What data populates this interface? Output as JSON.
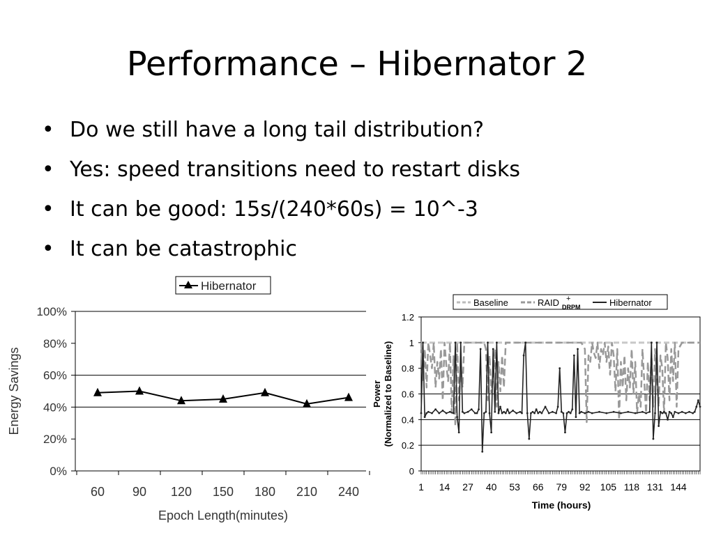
{
  "slide": {
    "title": "Performance – Hibernator 2",
    "bullet_glyph": "•",
    "bullets": [
      "Do we still have a long tail distribution?",
      "Yes: speed transitions need to restart disks",
      "It can be good: 15s/(240*60s) = 10^-3",
      "It can be catastrophic"
    ]
  },
  "chart_data": [
    {
      "type": "line",
      "title": "",
      "xlabel": "Epoch Length(minutes)",
      "ylabel": "Energy Savings",
      "categories": [
        "60",
        "90",
        "120",
        "150",
        "180",
        "210",
        "240"
      ],
      "series": [
        {
          "name": "Hibernator",
          "values": [
            49,
            50,
            44,
            45,
            49,
            42,
            46
          ]
        }
      ],
      "ylim": [
        0,
        100
      ],
      "yticks": [
        "0%",
        "20%",
        "40%",
        "60%",
        "80%",
        "100%"
      ],
      "grid": "horizontal lines at 40% and 60%",
      "legend": "top-center",
      "colors": {
        "line": "#000000",
        "grid": "#000000"
      }
    },
    {
      "type": "line",
      "title": "",
      "xlabel": "Time (hours)",
      "ylabel": "Power (Normalized to Baseline)",
      "xlim": [
        1,
        156
      ],
      "ylim": [
        0,
        1.2
      ],
      "yticks": [
        "0",
        "0.2",
        "0.4",
        "0.6",
        "0.8",
        "1",
        "1.2"
      ],
      "xticks": [
        "1",
        "14",
        "27",
        "40",
        "53",
        "66",
        "79",
        "92",
        "105",
        "118",
        "131",
        "144"
      ],
      "grid": "horizontal lines at 0.2, 0.4, 0.6",
      "legend": "top",
      "legend_items": [
        {
          "label": "Baseline",
          "color": "#bbbbbb"
        },
        {
          "label": "RAID",
          "superscript": "+",
          "subscript": "DRPM",
          "color": "#999999"
        },
        {
          "label": "Hibernator",
          "color": "#222222"
        }
      ],
      "series": [
        {
          "name": "Baseline",
          "x": [
            1,
            156
          ],
          "values": [
            1.0,
            1.0
          ]
        },
        {
          "name": "RAID+DRPM",
          "x": [
            1,
            2,
            3,
            4,
            5,
            6,
            7,
            8,
            9,
            10,
            11,
            12,
            13,
            14,
            15,
            16,
            17,
            18,
            19,
            20,
            21,
            22,
            23,
            24,
            25,
            26,
            27,
            30,
            33,
            36,
            37,
            38,
            39,
            40,
            41,
            42,
            43,
            44,
            45,
            46,
            47,
            48,
            50,
            52,
            54,
            56,
            58,
            60,
            62,
            64,
            66,
            68,
            70,
            75,
            80,
            85,
            90,
            92,
            93,
            94,
            95,
            96,
            97,
            98,
            99,
            100,
            101,
            102,
            103,
            104,
            105,
            106,
            107,
            108,
            109,
            110,
            111,
            112,
            113,
            114,
            115,
            116,
            117,
            118,
            119,
            120,
            121,
            122,
            123,
            124,
            125,
            126,
            127,
            128,
            129,
            130,
            131,
            132,
            133,
            134,
            135,
            136,
            137,
            138,
            139,
            140,
            141,
            142,
            143,
            144,
            146,
            148,
            150,
            152,
            154,
            156
          ],
          "values": [
            1.0,
            0.7,
            0.95,
            0.65,
            1.0,
            0.9,
            0.8,
            1.0,
            0.65,
            0.85,
            0.72,
            0.95,
            0.55,
            1.0,
            0.82,
            0.7,
            1.0,
            0.45,
            0.9,
            0.35,
            1.0,
            0.55,
            0.82,
            0.65,
            1.0,
            1.0,
            1.0,
            1.0,
            1.0,
            1.0,
            0.95,
            0.55,
            0.9,
            0.6,
            0.75,
            0.95,
            0.5,
            0.85,
            0.62,
            0.9,
            0.65,
            1.0,
            1.0,
            1.0,
            1.0,
            1.0,
            1.0,
            1.0,
            1.0,
            1.0,
            1.0,
            1.0,
            1.0,
            1.0,
            1.0,
            1.0,
            1.0,
            0.95,
            0.38,
            0.9,
            0.85,
            1.0,
            0.92,
            0.88,
            1.0,
            0.8,
            0.95,
            0.9,
            1.0,
            0.85,
            0.97,
            0.75,
            1.0,
            0.9,
            0.62,
            0.95,
            0.4,
            0.85,
            0.65,
            0.9,
            0.55,
            0.8,
            0.65,
            0.95,
            0.6,
            0.85,
            0.45,
            0.6,
            0.5,
            0.95,
            0.7,
            0.45,
            0.85,
            0.55,
            0.9,
            0.5,
            0.95,
            0.75,
            0.5,
            0.9,
            0.8,
            0.45,
            1.0,
            0.88,
            0.55,
            0.95,
            0.7,
            1.0,
            0.5,
            0.95,
            1.0,
            1.0,
            1.0,
            1.0,
            1.0,
            1.0
          ]
        },
        {
          "name": "Hibernator",
          "x": [
            1,
            2,
            3,
            4,
            5,
            7,
            9,
            11,
            13,
            15,
            17,
            19,
            20,
            21,
            22,
            23,
            24,
            25,
            27,
            29,
            31,
            32,
            33,
            34,
            35,
            36,
            37,
            38,
            39,
            40,
            41,
            42,
            43,
            44,
            45,
            46,
            47,
            48,
            49,
            50,
            52,
            54,
            56,
            57,
            58,
            59,
            60,
            61,
            62,
            63,
            64,
            65,
            66,
            67,
            68,
            70,
            72,
            74,
            76,
            77,
            78,
            79,
            80,
            81,
            82,
            83,
            84,
            85,
            86,
            87,
            88,
            89,
            90,
            92,
            94,
            96,
            100,
            104,
            108,
            112,
            116,
            120,
            124,
            126,
            128,
            129,
            130,
            131,
            132,
            133,
            134,
            135,
            136,
            137,
            138,
            139,
            140,
            141,
            142,
            144,
            146,
            148,
            150,
            152,
            153,
            154,
            155,
            156
          ],
          "values": [
            0.45,
            1.0,
            0.42,
            0.45,
            0.46,
            0.45,
            0.48,
            0.45,
            0.47,
            0.45,
            0.46,
            0.45,
            1.0,
            0.42,
            0.3,
            1.0,
            0.46,
            0.45,
            0.46,
            0.48,
            0.45,
            0.45,
            0.48,
            0.95,
            0.15,
            0.45,
            0.46,
            1.0,
            0.45,
            0.3,
            0.95,
            0.46,
            1.0,
            0.45,
            0.5,
            0.45,
            0.46,
            0.45,
            0.48,
            0.45,
            0.47,
            0.45,
            0.46,
            0.45,
            0.9,
            1.0,
            0.45,
            0.25,
            0.45,
            0.46,
            0.45,
            0.48,
            0.45,
            0.46,
            0.45,
            0.5,
            0.45,
            0.46,
            0.45,
            0.5,
            0.8,
            0.46,
            0.45,
            0.3,
            0.45,
            0.46,
            0.45,
            0.48,
            0.9,
            0.42,
            0.95,
            0.45,
            0.46,
            0.45,
            0.46,
            0.45,
            0.46,
            0.45,
            0.46,
            0.45,
            0.46,
            0.45,
            0.46,
            0.45,
            0.46,
            1.0,
            0.25,
            0.45,
            1.0,
            0.35,
            0.46,
            0.45,
            0.46,
            0.45,
            0.4,
            0.46,
            0.45,
            0.42,
            0.46,
            0.45,
            0.46,
            0.45,
            0.46,
            0.45,
            0.46,
            0.5,
            0.55,
            0.5
          ]
        }
      ]
    }
  ]
}
